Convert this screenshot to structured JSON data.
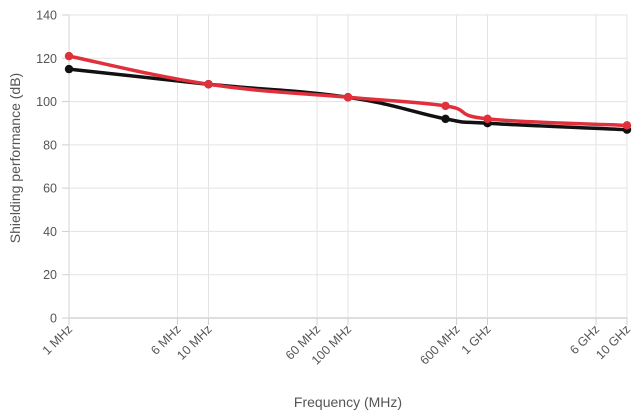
{
  "chart_data": {
    "type": "line",
    "title": "",
    "xlabel": "Frequency (MHz)",
    "ylabel": "Shielding performance (dB)",
    "x_scale": "log",
    "xlim": [
      1,
      10000
    ],
    "ylim": [
      0,
      140
    ],
    "y_ticks": [
      0,
      20,
      40,
      60,
      80,
      100,
      120,
      140
    ],
    "x_ticks": [
      {
        "value": 1,
        "label": "1 MHz"
      },
      {
        "value": 6,
        "label": "6 MHz"
      },
      {
        "value": 10,
        "label": "10 MHz"
      },
      {
        "value": 60,
        "label": "60 MHz"
      },
      {
        "value": 100,
        "label": "100 MHz"
      },
      {
        "value": 600,
        "label": "600 MHz"
      },
      {
        "value": 1000,
        "label": "1 GHz"
      },
      {
        "value": 6000,
        "label": "6 GHz"
      },
      {
        "value": 10000,
        "label": "10 GHz"
      }
    ],
    "grid": true,
    "legend": "none",
    "series": [
      {
        "color": "#111111",
        "points": [
          {
            "x": 1,
            "y": 115
          },
          {
            "x": 10,
            "y": 108
          },
          {
            "x": 100,
            "y": 102
          },
          {
            "x": 500,
            "y": 92
          },
          {
            "x": 1000,
            "y": 90
          },
          {
            "x": 10000,
            "y": 87
          }
        ]
      },
      {
        "color": "#e0303c",
        "points": [
          {
            "x": 1,
            "y": 121
          },
          {
            "x": 10,
            "y": 108
          },
          {
            "x": 100,
            "y": 102
          },
          {
            "x": 500,
            "y": 98
          },
          {
            "x": 1000,
            "y": 92
          },
          {
            "x": 10000,
            "y": 89
          }
        ]
      }
    ]
  }
}
